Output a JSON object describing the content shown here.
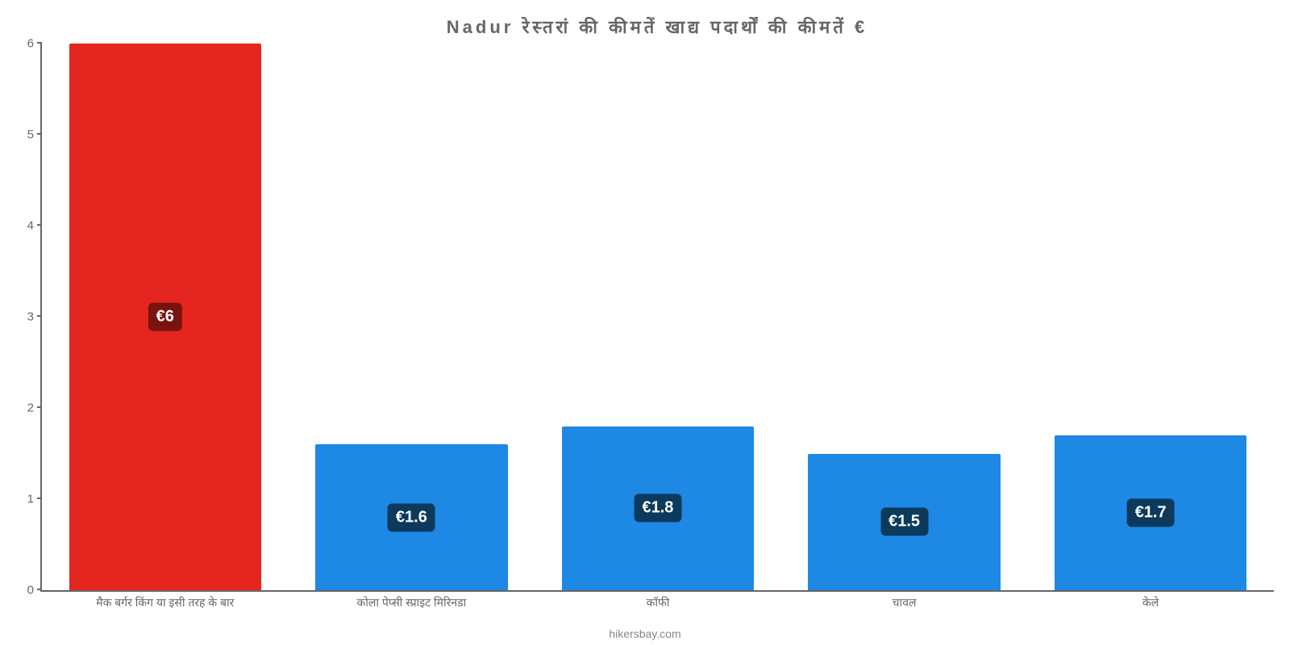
{
  "chart": {
    "type": "bar",
    "title": "Nadur रेस्तरां की कीमतें खाद्य पदार्थों की कीमतें €",
    "title_color": "#666666",
    "title_fontsize": 22,
    "attribution": "hikersbay.com",
    "attribution_color": "#888888",
    "background_color": "#ffffff",
    "axis_color": "#666666",
    "categories": [
      "मैक बर्गर किंग या इसी तरह के बार",
      "कोला पेप्सी स्प्राइट मिरिनडा",
      "कॉफी",
      "चावल",
      "केले"
    ],
    "values": [
      6,
      1.6,
      1.8,
      1.5,
      1.7
    ],
    "value_labels": [
      "€6",
      "€1.6",
      "€1.8",
      "€1.5",
      "€1.7"
    ],
    "bar_colors": [
      "#e52620",
      "#1e88e5",
      "#1e88e5",
      "#1e88e5",
      "#1e88e5"
    ],
    "badge_colors": [
      "#7a1310",
      "#0b3a5c",
      "#0b3a5c",
      "#0b3a5c",
      "#0b3a5c"
    ],
    "badge_fontsize": 20,
    "xlabel_fontsize": 14,
    "ylim": [
      0,
      6
    ],
    "yticks": [
      0,
      1,
      2,
      3,
      4,
      5,
      6
    ],
    "ytick_fontsize": 15,
    "bar_width_ratio": 0.78,
    "label_color": "#666666"
  }
}
